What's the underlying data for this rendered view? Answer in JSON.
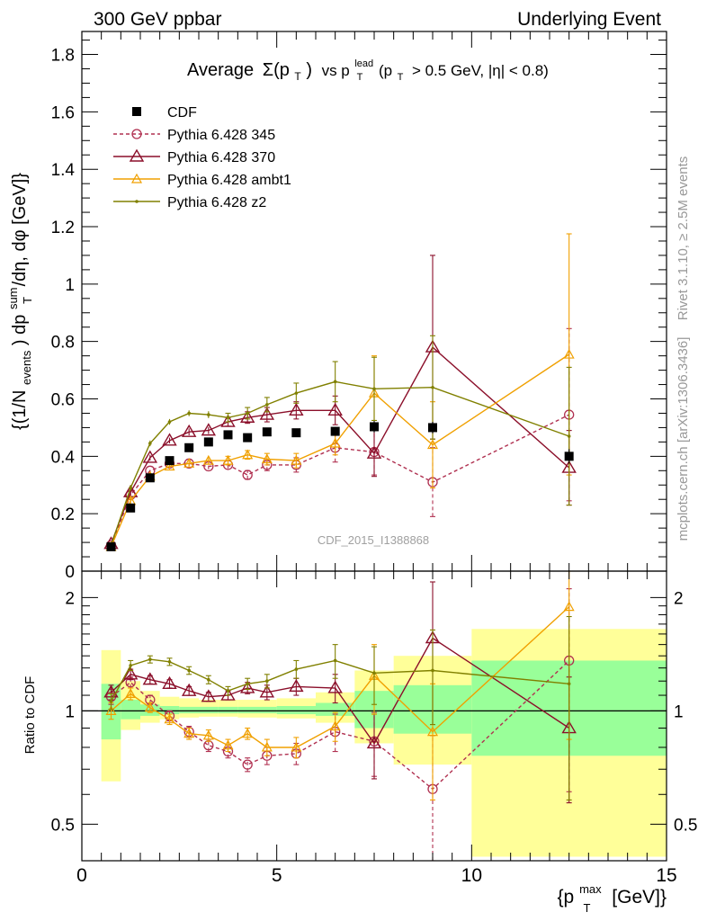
{
  "header": {
    "left": "300 GeV ppbar",
    "right": "Underlying Event"
  },
  "side_labels": {
    "rivet": "Rivet 3.1.10, ≥ 2.5M events",
    "mcplots": "mcplots.cern.ch [arXiv:1306.3436]"
  },
  "colors": {
    "cdf": "#000000",
    "p345": "#b03050",
    "p370": "#8b0f2a",
    "ambt1": "#f0a000",
    "z2": "#808000",
    "band_yellow": "#ffff99",
    "band_green": "#99ff99"
  },
  "chart_data": [
    {
      "type": "line",
      "title_parts": {
        "average": "Average",
        "sigma": "Σ(p",
        "sub_T": "T",
        "close": ")",
        "vs": "vs p",
        "sup_lead": "lead",
        "cut": "(p",
        "cut_rest": "> 0.5 GeV, |η| < 0.8)"
      },
      "ylabel_parts": {
        "a": "{(1/N",
        "sub_events": "events",
        "b": ") dp",
        "sup_sum": "sum",
        "sub_T": "T",
        "c": "/dη, dφ [GeV]}"
      },
      "watermark": "CDF_2015_I1388868",
      "ylim": [
        0,
        1.88
      ],
      "xlim": [
        0,
        15
      ],
      "yticks": [
        0,
        0.2,
        0.4,
        0.6,
        0.8,
        1,
        1.2,
        1.4,
        1.6,
        1.8
      ],
      "ytick_labels": [
        "0",
        "0.2",
        "0.4",
        "0.6",
        "0.8",
        "1",
        "1.2",
        "1.4",
        "1.6",
        "1.8"
      ],
      "legend_position": "top-left",
      "series": [
        {
          "key": "cdf",
          "name": "CDF",
          "marker": "square",
          "x": [
            0.75,
            1.25,
            1.75,
            2.25,
            2.75,
            3.25,
            3.75,
            4.25,
            4.75,
            5.5,
            6.5,
            7.5,
            9.0,
            12.5
          ],
          "y": [
            0.085,
            0.22,
            0.325,
            0.385,
            0.43,
            0.45,
            0.475,
            0.465,
            0.485,
            0.482,
            0.487,
            0.503,
            0.5,
            0.4
          ],
          "err": [
            0.005,
            0.01,
            0.01,
            0.01,
            0.01,
            0.01,
            0.01,
            0.01,
            0.01,
            0.012,
            0.015,
            0.02,
            0.02,
            0.025
          ]
        },
        {
          "key": "p345",
          "name": "Pythia 6.428 345",
          "marker": "circle",
          "dashed": true,
          "x": [
            0.75,
            1.25,
            1.75,
            2.25,
            2.75,
            3.25,
            3.75,
            4.25,
            4.75,
            5.5,
            6.5,
            7.5,
            9.0,
            12.5
          ],
          "y": [
            0.09,
            0.265,
            0.35,
            0.375,
            0.375,
            0.365,
            0.37,
            0.335,
            0.37,
            0.37,
            0.43,
            0.415,
            0.31,
            0.545
          ],
          "err": [
            0.005,
            0.01,
            0.01,
            0.01,
            0.01,
            0.01,
            0.012,
            0.015,
            0.02,
            0.025,
            0.05,
            0.08,
            0.12,
            0.3
          ]
        },
        {
          "key": "p370",
          "name": "Pythia 6.428 370",
          "marker": "triangle",
          "x": [
            0.75,
            1.25,
            1.75,
            2.25,
            2.75,
            3.25,
            3.75,
            4.25,
            4.75,
            5.5,
            6.5,
            7.5,
            9.0,
            12.5
          ],
          "y": [
            0.095,
            0.275,
            0.395,
            0.455,
            0.485,
            0.49,
            0.52,
            0.535,
            0.545,
            0.56,
            0.56,
            0.41,
            0.78,
            0.36
          ],
          "err": [
            0.005,
            0.01,
            0.01,
            0.01,
            0.012,
            0.012,
            0.015,
            0.02,
            0.025,
            0.03,
            0.05,
            0.08,
            0.32,
            0.13
          ]
        },
        {
          "key": "ambt1",
          "name": "Pythia 6.428 ambt1",
          "marker": "triangle-small",
          "x": [
            0.75,
            1.25,
            1.75,
            2.25,
            2.75,
            3.25,
            3.75,
            4.25,
            4.75,
            5.5,
            6.5,
            7.5,
            9.0,
            12.5
          ],
          "y": [
            0.085,
            0.245,
            0.33,
            0.365,
            0.375,
            0.385,
            0.385,
            0.405,
            0.39,
            0.385,
            0.445,
            0.62,
            0.44,
            0.755
          ],
          "err": [
            0.005,
            0.01,
            0.01,
            0.01,
            0.01,
            0.012,
            0.015,
            0.015,
            0.02,
            0.025,
            0.04,
            0.13,
            0.15,
            0.42
          ]
        },
        {
          "key": "z2",
          "name": "Pythia 6.428 z2",
          "marker": "dot",
          "x": [
            0.75,
            1.25,
            1.75,
            2.25,
            2.75,
            3.25,
            3.75,
            4.25,
            4.75,
            5.5,
            6.5,
            7.5,
            9.0,
            12.5
          ],
          "y": [
            0.09,
            0.29,
            0.445,
            0.52,
            0.55,
            0.545,
            0.535,
            0.55,
            0.58,
            0.62,
            0.66,
            0.635,
            0.64,
            0.47
          ],
          "err": [
            0.005,
            0.01,
            0.01,
            0.01,
            0.01,
            0.012,
            0.015,
            0.02,
            0.025,
            0.035,
            0.07,
            0.11,
            0.18,
            0.24
          ]
        }
      ]
    },
    {
      "type": "line",
      "ylabel": "Ratio to CDF",
      "xlabel_parts": {
        "a": "{p",
        "sup_max": "max",
        "sub_T": "T",
        "b": "[GeV]}"
      },
      "ylim": [
        0.4,
        2.35
      ],
      "xlim": [
        0,
        15
      ],
      "yticks": [
        0.5,
        1,
        2
      ],
      "ytick_labels": [
        "0.5",
        "1",
        "2"
      ],
      "xticks": [
        0,
        5,
        10,
        15
      ],
      "xtick_labels": [
        "0",
        "5",
        "10",
        "15"
      ],
      "reference_line": 1,
      "bands": [
        {
          "x0": 0.5,
          "x1": 1.0,
          "yellow": [
            0.65,
            1.45
          ],
          "green": [
            0.84,
            1.18
          ]
        },
        {
          "x0": 1.0,
          "x1": 1.5,
          "yellow": [
            0.89,
            1.2
          ],
          "green": [
            0.95,
            1.07
          ]
        },
        {
          "x0": 1.5,
          "x1": 2.0,
          "yellow": [
            0.93,
            1.13
          ],
          "green": [
            0.97,
            1.04
          ]
        },
        {
          "x0": 2.0,
          "x1": 2.5,
          "yellow": [
            0.95,
            1.09
          ],
          "green": [
            0.98,
            1.03
          ]
        },
        {
          "x0": 2.5,
          "x1": 3.0,
          "yellow": [
            0.96,
            1.08
          ],
          "green": [
            0.985,
            1.025
          ]
        },
        {
          "x0": 3.0,
          "x1": 3.5,
          "yellow": [
            0.965,
            1.07
          ],
          "green": [
            0.985,
            1.025
          ]
        },
        {
          "x0": 3.5,
          "x1": 4.0,
          "yellow": [
            0.965,
            1.07
          ],
          "green": [
            0.985,
            1.025
          ]
        },
        {
          "x0": 4.0,
          "x1": 4.5,
          "yellow": [
            0.96,
            1.07
          ],
          "green": [
            0.985,
            1.025
          ]
        },
        {
          "x0": 4.5,
          "x1": 5.0,
          "yellow": [
            0.96,
            1.07
          ],
          "green": [
            0.985,
            1.025
          ]
        },
        {
          "x0": 5.0,
          "x1": 6.0,
          "yellow": [
            0.955,
            1.08
          ],
          "green": [
            0.98,
            1.03
          ]
        },
        {
          "x0": 6.0,
          "x1": 7.0,
          "yellow": [
            0.93,
            1.12
          ],
          "green": [
            0.97,
            1.05
          ]
        },
        {
          "x0": 7.0,
          "x1": 8.0,
          "yellow": [
            0.82,
            1.28
          ],
          "green": [
            0.9,
            1.13
          ]
        },
        {
          "x0": 8.0,
          "x1": 10.0,
          "yellow": [
            0.72,
            1.4
          ],
          "green": [
            0.87,
            1.17
          ]
        },
        {
          "x0": 10.0,
          "x1": 15.0,
          "yellow": [
            0.41,
            1.65
          ],
          "green": [
            0.76,
            1.36
          ]
        }
      ],
      "series": [
        {
          "key": "p345",
          "marker": "circle",
          "dashed": true,
          "x": [
            0.75,
            1.25,
            1.75,
            2.25,
            2.75,
            3.25,
            3.75,
            4.25,
            4.75,
            5.5,
            6.5,
            7.5,
            9.0,
            12.5
          ],
          "y": [
            1.09,
            1.19,
            1.07,
            0.97,
            0.88,
            0.81,
            0.78,
            0.72,
            0.76,
            0.77,
            0.88,
            0.83,
            0.62,
            1.36
          ],
          "err": [
            0.05,
            0.04,
            0.03,
            0.03,
            0.03,
            0.03,
            0.03,
            0.03,
            0.04,
            0.05,
            0.1,
            0.16,
            0.24,
            0.75
          ]
        },
        {
          "key": "p370",
          "marker": "triangle",
          "x": [
            0.75,
            1.25,
            1.75,
            2.25,
            2.75,
            3.25,
            3.75,
            4.25,
            4.75,
            5.5,
            6.5,
            7.5,
            9.0,
            12.5
          ],
          "y": [
            1.12,
            1.25,
            1.21,
            1.18,
            1.13,
            1.09,
            1.1,
            1.15,
            1.12,
            1.16,
            1.15,
            0.82,
            1.56,
            0.9
          ],
          "err": [
            0.05,
            0.04,
            0.03,
            0.03,
            0.03,
            0.03,
            0.03,
            0.04,
            0.05,
            0.06,
            0.1,
            0.16,
            0.64,
            0.33
          ]
        },
        {
          "key": "ambt1",
          "marker": "triangle-small",
          "x": [
            0.75,
            1.25,
            1.75,
            2.25,
            2.75,
            3.25,
            3.75,
            4.25,
            4.75,
            5.5,
            6.5,
            7.5,
            9.0,
            12.5
          ],
          "y": [
            1.0,
            1.11,
            1.02,
            0.95,
            0.87,
            0.86,
            0.81,
            0.87,
            0.8,
            0.8,
            0.91,
            1.24,
            0.88,
            1.89
          ],
          "err": [
            0.05,
            0.04,
            0.03,
            0.03,
            0.03,
            0.03,
            0.03,
            0.03,
            0.04,
            0.05,
            0.08,
            0.26,
            0.3,
            1.05
          ]
        },
        {
          "key": "z2",
          "marker": "dot",
          "x": [
            0.75,
            1.25,
            1.75,
            2.25,
            2.75,
            3.25,
            3.75,
            4.25,
            4.75,
            5.5,
            6.5,
            7.5,
            9.0,
            12.5
          ],
          "y": [
            1.06,
            1.32,
            1.37,
            1.35,
            1.28,
            1.21,
            1.13,
            1.18,
            1.2,
            1.29,
            1.36,
            1.26,
            1.28,
            1.18
          ],
          "err": [
            0.05,
            0.04,
            0.03,
            0.03,
            0.03,
            0.03,
            0.03,
            0.04,
            0.05,
            0.07,
            0.14,
            0.22,
            0.36,
            0.6
          ]
        }
      ]
    }
  ]
}
